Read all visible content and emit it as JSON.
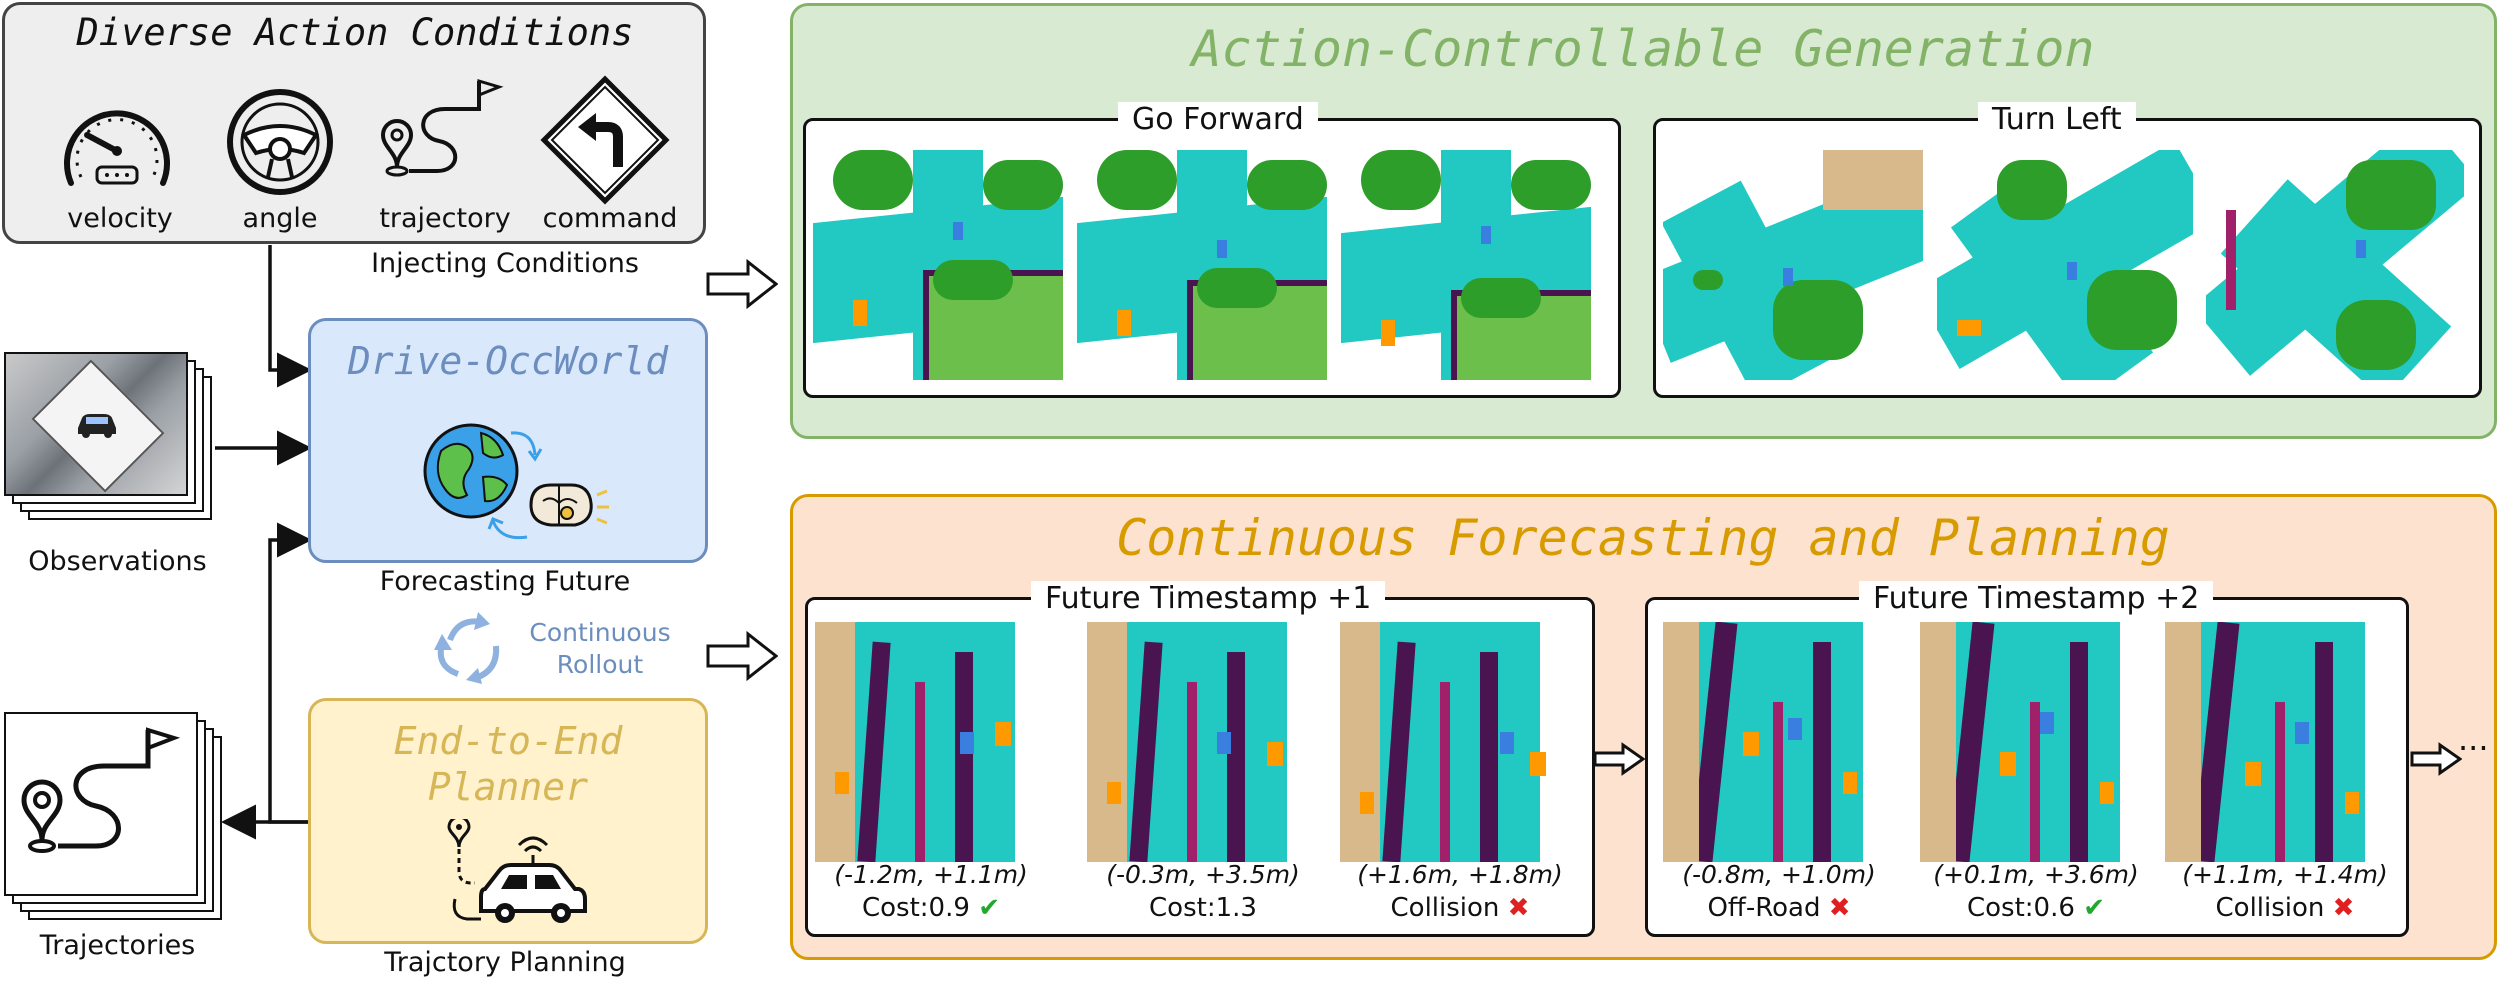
{
  "conditions": {
    "title": "Diverse Action Conditions",
    "items": [
      "velocity",
      "angle",
      "trajectory",
      "command"
    ],
    "caption": "Injecting Conditions"
  },
  "observations": {
    "label": "Observations"
  },
  "world_model": {
    "title": "Drive-OccWorld",
    "caption": "Forecasting Future"
  },
  "rollout": {
    "label_line1": "Continuous",
    "label_line2": "Rollout"
  },
  "planner": {
    "title_line1": "End-to-End",
    "title_line2": "Planner",
    "caption": "Trajctory Planning"
  },
  "trajectories": {
    "label": "Trajectories"
  },
  "generation": {
    "title": "Action-Controllable Generation",
    "groups": [
      {
        "title": "Go Forward"
      },
      {
        "title": "Turn Left"
      }
    ]
  },
  "forecasting": {
    "title": "Continuous Forecasting and Planning",
    "ellipsis": "···",
    "groups": [
      {
        "title": "Future Timestamp +1",
        "items": [
          {
            "coord": "(-1.2m, +1.1m)",
            "status": "Cost:0.9",
            "mark": "✔"
          },
          {
            "coord": "(-0.3m, +3.5m)",
            "status": "Cost:1.3",
            "mark": ""
          },
          {
            "coord": "(+1.6m, +1.8m)",
            "status": "Collision",
            "mark": "✖"
          }
        ]
      },
      {
        "title": "Future Timestamp +2",
        "items": [
          {
            "coord": "(-0.8m, +1.0m)",
            "status": "Off-Road",
            "mark": "✖"
          },
          {
            "coord": "(+0.1m, +3.6m)",
            "status": "Cost:0.6",
            "mark": "✔"
          },
          {
            "coord": "(+1.1m, +1.4m)",
            "status": "Collision",
            "mark": "✖"
          }
        ]
      }
    ]
  },
  "colors": {
    "conditions_bg": "#eeeeee",
    "world_bg": "#dae8fc",
    "world_border": "#6c8ebf",
    "planner_bg": "#fff2cc",
    "planner_border": "#d6b656",
    "gen_bg": "#d9ead3",
    "gen_border": "#82b366",
    "fc_bg": "#fde3cf",
    "fc_border": "#d79b00",
    "road": "#22c9c3",
    "vegetation": "#2e9e2a",
    "sidewalk": "#4a1450",
    "terrain": "#6cbf4a",
    "building": "#d8b98c",
    "car": "#ff9900",
    "ego": "#3a7ee0"
  }
}
